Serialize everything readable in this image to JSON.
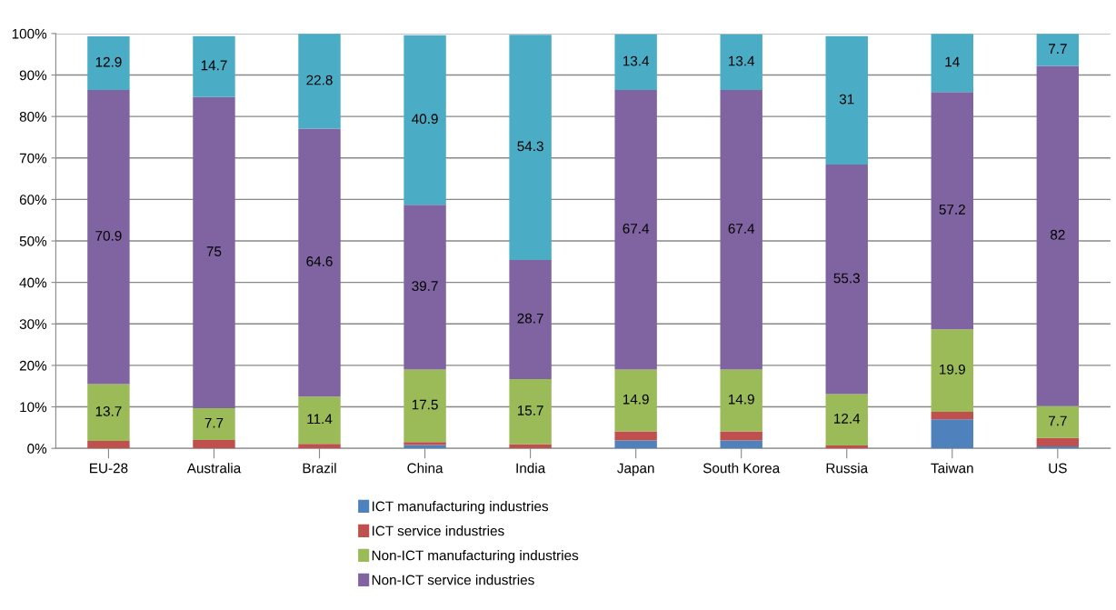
{
  "chart_data": {
    "type": "bar",
    "stacked": true,
    "categories": [
      "EU-28",
      "Australia",
      "Brazil",
      "China",
      "India",
      "Japan",
      "South Korea",
      "Russia",
      "Taiwan",
      "US"
    ],
    "series": [
      {
        "name": "ICT manufacturing industries",
        "color": "#4f81bd",
        "values": [
          null,
          null,
          null,
          0.8,
          null,
          1.9,
          1.9,
          null,
          7.0,
          0.5
        ]
      },
      {
        "name": "ICT service industries",
        "color": "#c0504d",
        "values": [
          1.8,
          2.0,
          1.1,
          0.7,
          1.0,
          2.2,
          2.2,
          0.7,
          1.8,
          2.0
        ]
      },
      {
        "name": "Non-ICT manufacturing industries",
        "color": "#9bbb59",
        "values": [
          13.7,
          7.7,
          11.4,
          17.5,
          15.7,
          14.9,
          14.9,
          12.4,
          19.9,
          7.7
        ],
        "value_labels": [
          "13.7",
          "7.7",
          "11.4",
          "17.5",
          "15.7",
          "14.9",
          "14.9",
          "12.4",
          "19.9",
          "7.7"
        ]
      },
      {
        "name": "Non-ICT service industries",
        "color": "#8064a2",
        "values": [
          70.9,
          75,
          64.6,
          39.7,
          28.7,
          67.4,
          67.4,
          55.3,
          57.2,
          82
        ],
        "value_labels": [
          "70.9",
          "75",
          "64.6",
          "39.7",
          "28.7",
          "67.4",
          "67.4",
          "55.3",
          "57.2",
          "82"
        ]
      },
      {
        "color": "#4bacc6",
        "values": [
          12.9,
          14.7,
          22.8,
          40.9,
          54.3,
          13.4,
          13.4,
          31,
          14,
          7.7
        ],
        "value_labels": [
          "12.9",
          "14.7",
          "22.8",
          "40.9",
          "54.3",
          "13.4",
          "13.4",
          "31",
          "14",
          "7.7"
        ]
      }
    ],
    "ylim": [
      0,
      100
    ],
    "yticks": [
      {
        "value": 0,
        "label": "0%"
      },
      {
        "value": 10,
        "label": "10%"
      },
      {
        "value": 20,
        "label": "20%"
      },
      {
        "value": 30,
        "label": "30%"
      },
      {
        "value": 40,
        "label": "40%"
      },
      {
        "value": 50,
        "label": "50%"
      },
      {
        "value": 60,
        "label": "60%"
      },
      {
        "value": 70,
        "label": "70%"
      },
      {
        "value": 80,
        "label": "80%"
      },
      {
        "value": 90,
        "label": "90%"
      },
      {
        "value": 100,
        "label": "100%"
      }
    ],
    "grid": "y",
    "legend": "bottom"
  }
}
